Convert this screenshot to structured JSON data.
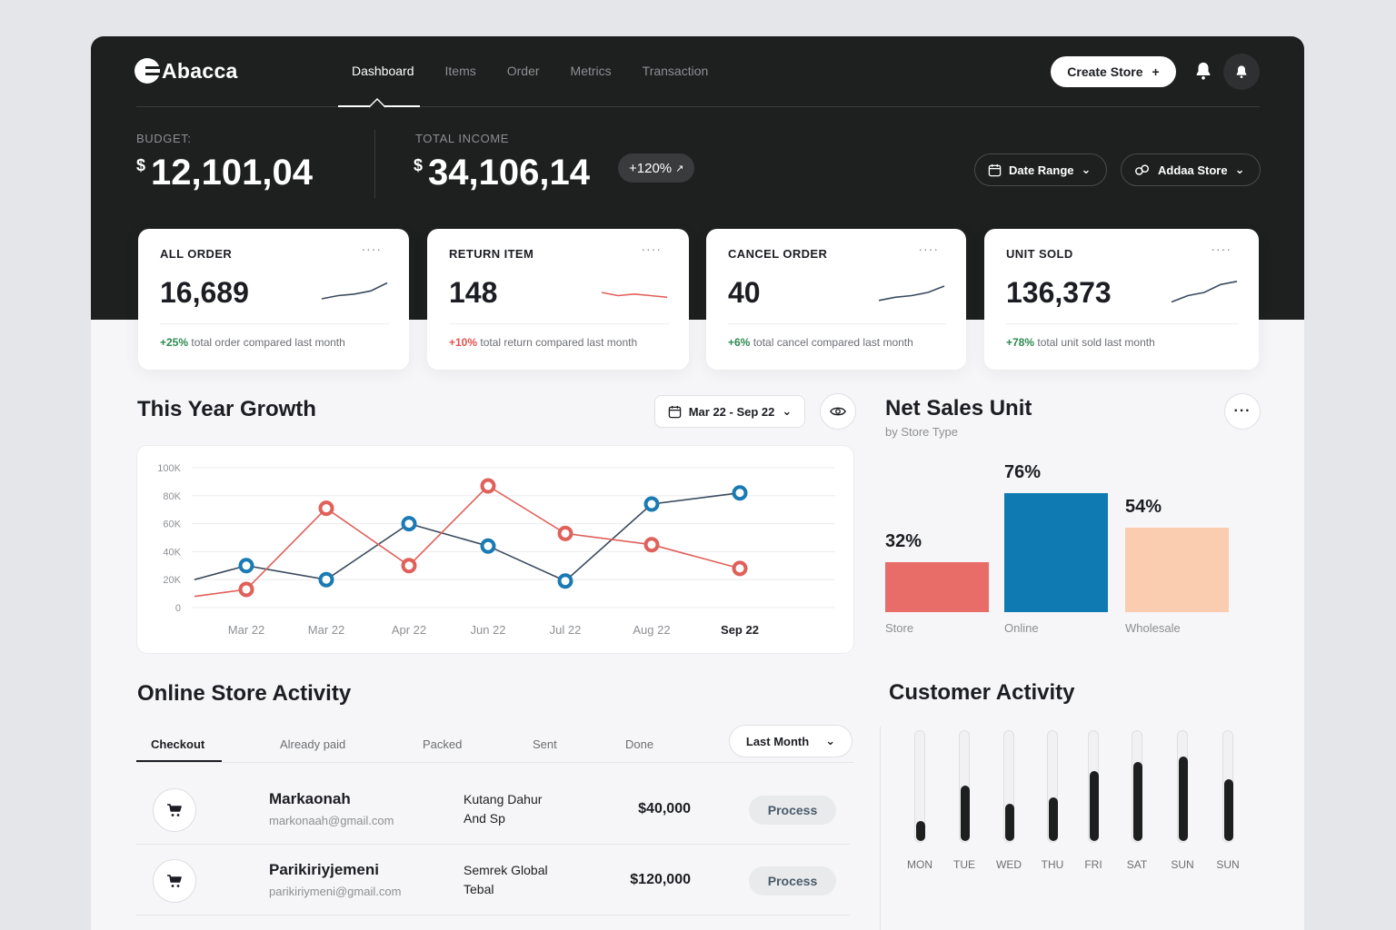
{
  "brand": {
    "name": "Abacca"
  },
  "nav": {
    "items": [
      "Dashboard",
      "Items",
      "Order",
      "Metrics",
      "Transaction"
    ],
    "active": "Dashboard",
    "create_label": "Create Store",
    "create_icon": "plus-icon"
  },
  "budget": {
    "label": "BUDGET:",
    "currency": "$",
    "value": "12,101,04"
  },
  "income": {
    "label": "TOTAL INCOME",
    "currency": "$",
    "value": "34,106,14",
    "change": "+120%"
  },
  "filters": {
    "date_label": "Date Range",
    "store_label": "Addaa Store"
  },
  "kpis": [
    {
      "title": "ALL ORDER",
      "value": "16,689",
      "change": "+25%",
      "note": "total order compared last month",
      "trend": "up",
      "spark": [
        4,
        6,
        7,
        9,
        14
      ]
    },
    {
      "title": "RETURN ITEM",
      "value": "148",
      "change": "+10%",
      "note": "total return compared last month",
      "trend": "down",
      "spark": [
        8,
        6,
        7,
        6,
        5
      ]
    },
    {
      "title": "CANCEL ORDER",
      "value": "40",
      "change": "+6%",
      "note": "total cancel compared last month",
      "trend": "up",
      "spark": [
        3,
        5,
        6,
        8,
        12
      ]
    },
    {
      "title": "UNIT SOLD",
      "value": "136,373",
      "change": "+78%",
      "note": "total unit sold last month",
      "trend": "up",
      "spark": [
        2,
        6,
        8,
        13,
        15
      ]
    }
  ],
  "growth": {
    "title": "This Year Growth",
    "range_label": "Mar 22 - Sep 22"
  },
  "chart_data": {
    "type": "line",
    "title": "This Year Growth",
    "categories": [
      "Mar 22",
      "Mar 22",
      "Apr 22",
      "Jun 22",
      "Jul 22",
      "Aug 22",
      "Sep 22"
    ],
    "highlight_category": "Sep 22",
    "yticks": [
      "100K",
      "80K",
      "60K",
      "40K",
      "20K",
      "0"
    ],
    "ylim": [
      0,
      100000
    ],
    "series": [
      {
        "name": "Blue",
        "color": "#1a7ab3",
        "line_color": "#3a4a5e",
        "points": [
          [
            -0.6,
            20000
          ],
          [
            0,
            30000
          ],
          [
            1,
            20000
          ],
          [
            2,
            60000
          ],
          [
            3,
            44000
          ],
          [
            4,
            19000
          ],
          [
            5,
            74000
          ],
          [
            6,
            82000
          ]
        ]
      },
      {
        "name": "Red",
        "color": "#e0605a",
        "line_color": "#e0605a",
        "points": [
          [
            -0.6,
            8000
          ],
          [
            0,
            13000
          ],
          [
            1,
            71000
          ],
          [
            2,
            30000
          ],
          [
            3,
            87000
          ],
          [
            4,
            53000
          ],
          [
            5,
            45000
          ],
          [
            6,
            28000
          ]
        ]
      }
    ],
    "markers": {
      "Blue": [
        1,
        2,
        3,
        4,
        5,
        6,
        7
      ],
      "Red": [
        1,
        2,
        3,
        4,
        5,
        6,
        7
      ]
    }
  },
  "net_sales": {
    "title": "Net Sales Unit",
    "subtitle": "by Store Type",
    "bars": [
      {
        "label": "Store",
        "pct": "32%",
        "value": 32,
        "color": "#e86c68"
      },
      {
        "label": "Online",
        "pct": "76%",
        "value": 76,
        "color": "#0f7ab1"
      },
      {
        "label": "Wholesale",
        "pct": "54%",
        "value": 54,
        "color": "#fbcdb0"
      }
    ]
  },
  "activity": {
    "title": "Online Store Activity",
    "tabs": [
      "Checkout",
      "Already paid",
      "Packed",
      "Sent",
      "Done"
    ],
    "active_tab": "Checkout",
    "filter_label": "Last Month",
    "rows": [
      {
        "name": "Markaonah",
        "email": "markonaah@gmail.com",
        "product": "Kutang Dahur And Sp",
        "amount": "$40,000",
        "action": "Process"
      },
      {
        "name": "Parikiriyjemeni",
        "email": "parikiriymeni@gmail.com",
        "product": "Semrek Global Tebal",
        "amount": "$120,000",
        "action": "Process"
      }
    ]
  },
  "customer": {
    "title": "Customer Activity",
    "days": [
      "MON",
      "TUE",
      "WED",
      "THU",
      "FRI",
      "SAT",
      "SUN",
      "SUN"
    ],
    "levels": [
      0.18,
      0.5,
      0.34,
      0.39,
      0.63,
      0.71,
      0.76,
      0.56
    ]
  }
}
